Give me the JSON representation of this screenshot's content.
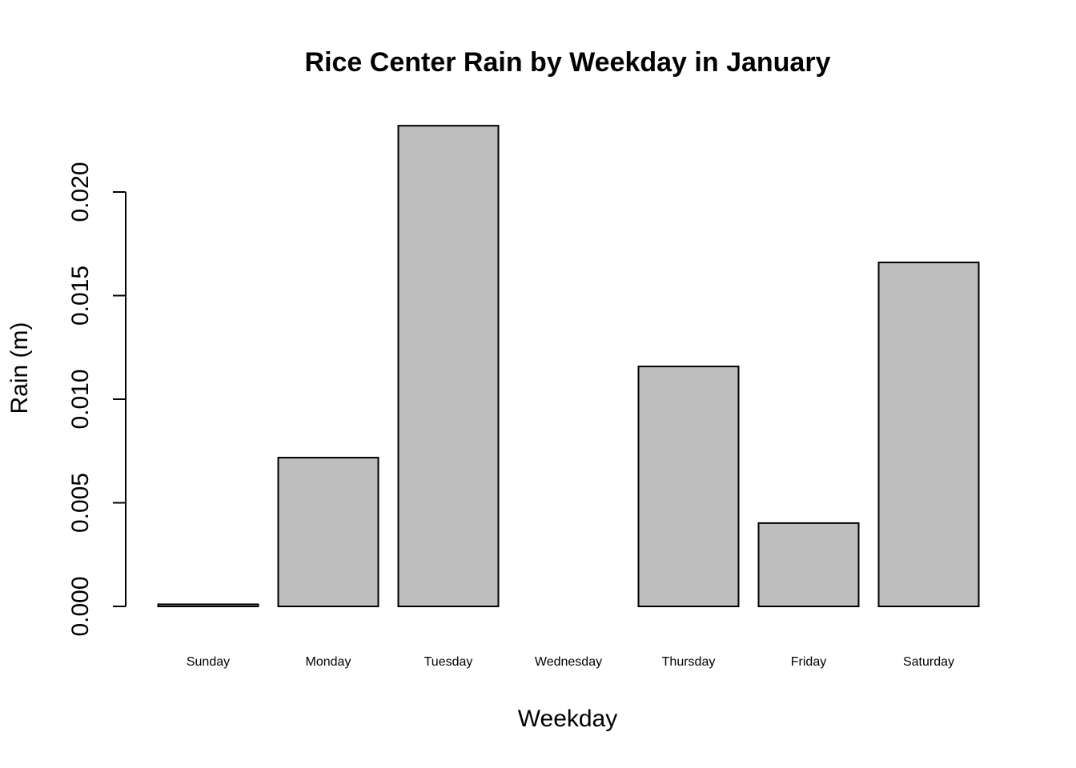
{
  "chart_data": {
    "type": "bar",
    "title": "Rice Center Rain by Weekday in January",
    "x_label": "Weekday",
    "y_label": "Rain (m)",
    "categories": [
      "Sunday",
      "Monday",
      "Tuesday",
      "Wednesday",
      "Thursday",
      "Friday",
      "Saturday"
    ],
    "values": [
      0.0001,
      0.00718,
      0.0232,
      0,
      0.01158,
      0.00402,
      0.0166
    ],
    "color": "#bebebe",
    "ylim": [
      0,
      0.024
    ],
    "yticks": [
      {
        "value": 0,
        "label": "0.000"
      },
      {
        "value": 0.005,
        "label": "0.005"
      },
      {
        "value": 0.01,
        "label": "0.010"
      },
      {
        "value": 0.015,
        "label": "0.015"
      },
      {
        "value": 0.02,
        "label": "0.020"
      }
    ],
    "grid": false
  }
}
